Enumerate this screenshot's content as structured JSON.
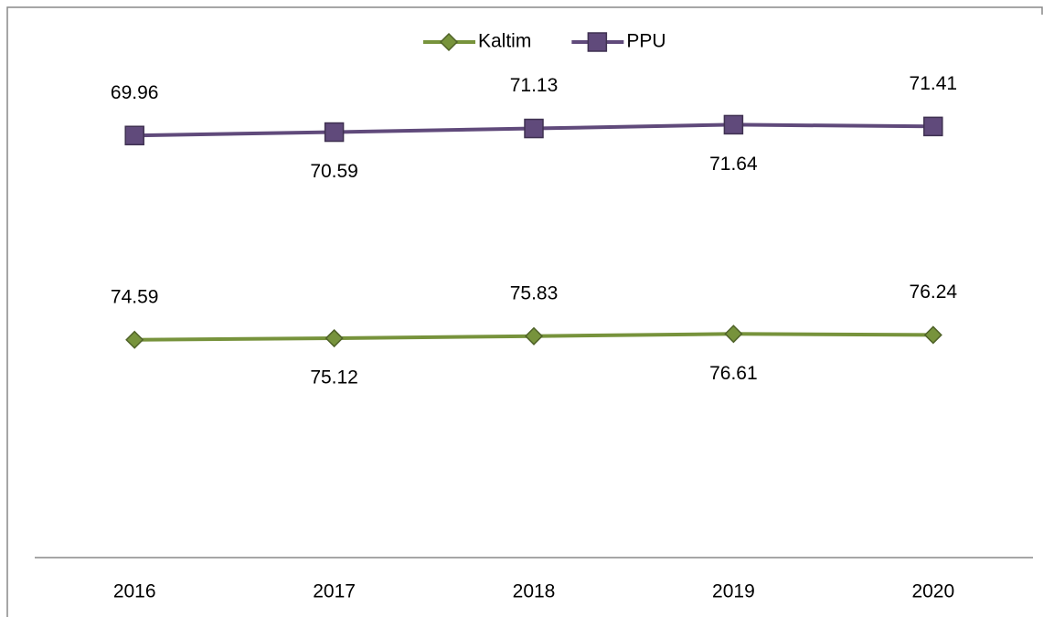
{
  "chart_data": {
    "type": "line",
    "stacked": true,
    "categories": [
      "2016",
      "2017",
      "2018",
      "2019",
      "2020"
    ],
    "series": [
      {
        "name": "Kaltim",
        "color": "#77933c",
        "values": [
          74.59,
          75.12,
          75.83,
          76.61,
          76.24
        ]
      },
      {
        "name": "PPU",
        "color": "#604a7b",
        "values": [
          69.96,
          70.59,
          71.13,
          71.64,
          71.41
        ]
      }
    ],
    "ylim": [
      0,
      180
    ],
    "legend": "top"
  }
}
